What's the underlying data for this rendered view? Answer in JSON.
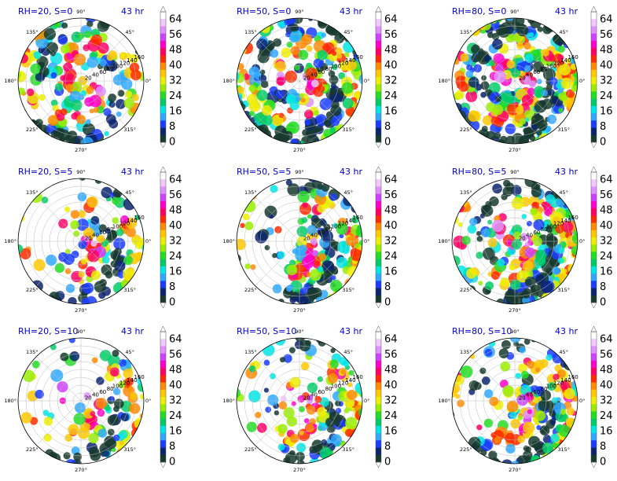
{
  "chart_data": {
    "type": "heatmap",
    "projection": "polar",
    "colorbar": {
      "ticks": [
        0,
        8,
        16,
        24,
        32,
        40,
        48,
        56,
        64
      ],
      "colors": [
        "#173a2e",
        "#0a246e",
        "#1a3cff",
        "#2fa9ff",
        "#00e5e5",
        "#00cc66",
        "#22dd22",
        "#99ee00",
        "#eeee00",
        "#ffc800",
        "#ff8a00",
        "#ff2a00",
        "#ff0066",
        "#ff00cc",
        "#d040ff",
        "#e090ff",
        "#f2c8ff",
        "#ffffff"
      ]
    },
    "azimuth_labels": [
      "90°",
      "45°",
      "0°",
      "315°",
      "270°",
      "225°",
      "180°",
      "135°"
    ],
    "radius_labels": [
      "20",
      "40",
      "60",
      "80",
      "100",
      "120",
      "140",
      "160"
    ],
    "panels": [
      {
        "title": "RH=20, S=0",
        "time": "43 hr",
        "shear": 0,
        "rh": 20
      },
      {
        "title": "RH=50, S=0",
        "time": "43 hr",
        "shear": 0,
        "rh": 50
      },
      {
        "title": "RH=80, S=0",
        "time": "43 hr",
        "shear": 0,
        "rh": 80
      },
      {
        "title": "RH=20, S=5",
        "time": "43 hr",
        "shear": 5,
        "rh": 20
      },
      {
        "title": "RH=50, S=5",
        "time": "43 hr",
        "shear": 5,
        "rh": 50
      },
      {
        "title": "RH=80, S=5",
        "time": "43 hr",
        "shear": 5,
        "rh": 80
      },
      {
        "title": "RH=20, S=10",
        "time": "43 hr",
        "shear": 10,
        "rh": 20
      },
      {
        "title": "RH=50, S=10",
        "time": "43 hr",
        "shear": 10,
        "rh": 50
      },
      {
        "title": "RH=80, S=10",
        "time": "43 hr",
        "shear": 10,
        "rh": 80
      }
    ]
  }
}
